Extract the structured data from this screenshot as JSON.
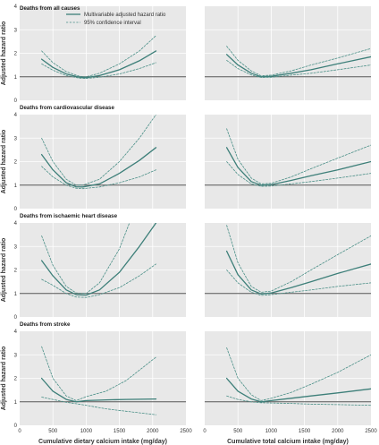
{
  "colors": {
    "panel_background": "#e8e8e8",
    "grid": "#ffffff",
    "reference_line": "#555555",
    "estimate_line": "#3d7f79",
    "ci_line": "#4a8f87"
  },
  "legend": {
    "items": [
      {
        "label": "Multivariable adjusted hazard ratio",
        "style": "solid"
      },
      {
        "label": "95% confidence interval",
        "style": "dashed"
      }
    ],
    "position": "top-left of first panel"
  },
  "axes": {
    "ylabel": "Adjusted hazard ratio",
    "xlabel_left": "Cumulative dietary calcium intake (mg/day)",
    "xlabel_right": "Cumulative total calcium intake (mg/day)",
    "x_ticks": [
      "0",
      "500",
      "1000",
      "1500",
      "2000",
      "2500"
    ],
    "y_ticks": [
      "0",
      "1",
      "2",
      "3",
      "4"
    ]
  },
  "chart_data": [
    {
      "type": "line",
      "title": "Deaths from all causes",
      "xlabel": "",
      "ylabel": "Adjusted hazard ratio",
      "xlim": [
        0,
        2500
      ],
      "ylim": [
        0,
        4
      ],
      "grid": true,
      "reference_y": 1,
      "series": [
        {
          "name": "Multivariable adjusted hazard ratio",
          "style": "solid",
          "x": [
            330,
            500,
            700,
            900,
            1000,
            1200,
            1500,
            1800,
            2050
          ],
          "y": [
            1.75,
            1.4,
            1.12,
            0.98,
            0.96,
            1.05,
            1.3,
            1.68,
            2.1
          ]
        },
        {
          "name": "95% confidence interval (upper)",
          "style": "dashed",
          "x": [
            330,
            500,
            700,
            900,
            1000,
            1200,
            1500,
            1800,
            2050
          ],
          "y": [
            2.1,
            1.6,
            1.22,
            1.02,
            1.0,
            1.15,
            1.55,
            2.1,
            2.75
          ]
        },
        {
          "name": "95% confidence interval (lower)",
          "style": "dashed",
          "x": [
            330,
            500,
            700,
            900,
            1000,
            1200,
            1500,
            1800,
            2050
          ],
          "y": [
            1.55,
            1.28,
            1.05,
            0.94,
            0.93,
            0.98,
            1.12,
            1.35,
            1.6
          ]
        }
      ]
    },
    {
      "type": "line",
      "title": "",
      "xlabel": "",
      "ylabel": "",
      "xlim": [
        0,
        2500
      ],
      "ylim": [
        0,
        4
      ],
      "grid": true,
      "reference_y": 1,
      "series": [
        {
          "name": "Multivariable adjusted hazard ratio",
          "style": "solid",
          "x": [
            330,
            500,
            700,
            850,
            1000,
            1300,
            1600,
            2000,
            2500
          ],
          "y": [
            1.95,
            1.5,
            1.15,
            1.0,
            1.02,
            1.15,
            1.3,
            1.55,
            1.85
          ]
        },
        {
          "name": "95% confidence interval (upper)",
          "style": "dashed",
          "x": [
            330,
            500,
            700,
            850,
            1000,
            1300,
            1600,
            2000,
            2500
          ],
          "y": [
            2.3,
            1.7,
            1.25,
            1.04,
            1.07,
            1.25,
            1.5,
            1.8,
            2.2
          ]
        },
        {
          "name": "95% confidence interval (lower)",
          "style": "dashed",
          "x": [
            330,
            500,
            700,
            850,
            1000,
            1300,
            1600,
            2000,
            2500
          ],
          "y": [
            1.7,
            1.35,
            1.08,
            0.97,
            0.98,
            1.07,
            1.15,
            1.3,
            1.5
          ]
        }
      ]
    },
    {
      "type": "line",
      "title": "Deaths from cardiovascular disease",
      "xlabel": "",
      "ylabel": "Adjusted hazard ratio",
      "xlim": [
        0,
        2500
      ],
      "ylim": [
        0,
        4
      ],
      "grid": true,
      "reference_y": 1,
      "series": [
        {
          "name": "Multivariable adjusted hazard ratio",
          "style": "solid",
          "x": [
            330,
            500,
            700,
            850,
            950,
            1200,
            1500,
            1800,
            2050
          ],
          "y": [
            2.3,
            1.65,
            1.1,
            0.93,
            0.92,
            1.05,
            1.5,
            2.05,
            2.6
          ]
        },
        {
          "name": "95% confidence interval (upper)",
          "style": "dashed",
          "x": [
            330,
            500,
            700,
            850,
            950,
            1200,
            1500,
            1800,
            1950,
            2050
          ],
          "y": [
            3.0,
            2.0,
            1.25,
            1.0,
            1.0,
            1.25,
            2.0,
            3.0,
            3.6,
            4.0
          ]
        },
        {
          "name": "95% confidence interval (lower)",
          "style": "dashed",
          "x": [
            330,
            500,
            700,
            850,
            950,
            1200,
            1500,
            1800,
            2050
          ],
          "y": [
            1.8,
            1.35,
            1.0,
            0.87,
            0.85,
            0.92,
            1.1,
            1.35,
            1.65
          ]
        }
      ]
    },
    {
      "type": "line",
      "title": "",
      "xlabel": "",
      "ylabel": "",
      "xlim": [
        0,
        2500
      ],
      "ylim": [
        0,
        4
      ],
      "grid": true,
      "reference_y": 1,
      "series": [
        {
          "name": "Multivariable adjusted hazard ratio",
          "style": "solid",
          "x": [
            330,
            500,
            700,
            850,
            1000,
            1300,
            1600,
            2000,
            2500
          ],
          "y": [
            2.6,
            1.75,
            1.15,
            1.0,
            1.02,
            1.2,
            1.4,
            1.65,
            2.0
          ]
        },
        {
          "name": "95% confidence interval (upper)",
          "style": "dashed",
          "x": [
            330,
            500,
            700,
            850,
            1000,
            1300,
            1600,
            2000,
            2500
          ],
          "y": [
            3.4,
            2.1,
            1.3,
            1.05,
            1.08,
            1.35,
            1.7,
            2.15,
            2.7
          ]
        },
        {
          "name": "95% confidence interval (lower)",
          "style": "dashed",
          "x": [
            330,
            500,
            700,
            850,
            1000,
            1300,
            1600,
            2000,
            2500
          ],
          "y": [
            2.0,
            1.45,
            1.05,
            0.95,
            0.96,
            1.05,
            1.15,
            1.3,
            1.5
          ]
        }
      ]
    },
    {
      "type": "line",
      "title": "Deaths from ischaemic heart disease",
      "xlabel": "",
      "ylabel": "Adjusted hazard ratio",
      "xlim": [
        0,
        2500
      ],
      "ylim": [
        0,
        4
      ],
      "grid": true,
      "reference_y": 1,
      "series": [
        {
          "name": "Multivariable adjusted hazard ratio",
          "style": "solid",
          "x": [
            330,
            500,
            700,
            850,
            1000,
            1200,
            1500,
            1800,
            2050
          ],
          "y": [
            2.4,
            1.75,
            1.15,
            0.95,
            0.93,
            1.15,
            1.9,
            3.0,
            4.0
          ]
        },
        {
          "name": "95% confidence interval (upper)",
          "style": "dashed",
          "x": [
            330,
            500,
            700,
            850,
            1000,
            1200,
            1500,
            1650
          ],
          "y": [
            3.45,
            2.2,
            1.3,
            1.02,
            1.0,
            1.45,
            2.9,
            4.0
          ]
        },
        {
          "name": "95% confidence interval (lower)",
          "style": "dashed",
          "x": [
            330,
            500,
            700,
            850,
            1000,
            1200,
            1500,
            1800,
            2050
          ],
          "y": [
            1.6,
            1.35,
            1.0,
            0.85,
            0.83,
            0.95,
            1.25,
            1.75,
            2.25
          ]
        }
      ]
    },
    {
      "type": "line",
      "title": "",
      "xlabel": "",
      "ylabel": "",
      "xlim": [
        0,
        2500
      ],
      "ylim": [
        0,
        4
      ],
      "grid": true,
      "reference_y": 1,
      "series": [
        {
          "name": "Multivariable adjusted hazard ratio",
          "style": "solid",
          "x": [
            330,
            500,
            700,
            850,
            1000,
            1300,
            1600,
            2000,
            2500
          ],
          "y": [
            2.8,
            1.8,
            1.15,
            0.98,
            1.02,
            1.25,
            1.5,
            1.85,
            2.25
          ]
        },
        {
          "name": "95% confidence interval (upper)",
          "style": "dashed",
          "x": [
            330,
            500,
            700,
            850,
            1000,
            1300,
            1600,
            2000,
            2500
          ],
          "y": [
            3.9,
            2.3,
            1.3,
            1.05,
            1.1,
            1.5,
            2.0,
            2.65,
            3.45
          ]
        },
        {
          "name": "95% confidence interval (lower)",
          "style": "dashed",
          "x": [
            330,
            500,
            700,
            850,
            1000,
            1300,
            1600,
            2000,
            2500
          ],
          "y": [
            2.0,
            1.45,
            1.05,
            0.92,
            0.95,
            1.05,
            1.15,
            1.3,
            1.45
          ]
        }
      ]
    },
    {
      "type": "line",
      "title": "Deaths from stroke",
      "xlabel": "Cumulative dietary calcium intake (mg/day)",
      "ylabel": "Adjusted hazard ratio",
      "xlim": [
        0,
        2500
      ],
      "ylim": [
        0,
        4
      ],
      "grid": true,
      "reference_y": 1,
      "series": [
        {
          "name": "Multivariable adjusted hazard ratio",
          "style": "solid",
          "x": [
            330,
            500,
            700,
            850,
            1000,
            1300,
            1600,
            2050
          ],
          "y": [
            2.0,
            1.45,
            1.1,
            1.0,
            1.05,
            1.08,
            1.1,
            1.12
          ]
        },
        {
          "name": "95% confidence interval (upper)",
          "style": "dashed",
          "x": [
            330,
            500,
            700,
            850,
            1000,
            1300,
            1600,
            2050
          ],
          "y": [
            3.35,
            2.0,
            1.25,
            1.05,
            1.22,
            1.45,
            1.9,
            2.9
          ]
        },
        {
          "name": "95% confidence interval (lower)",
          "style": "dashed",
          "x": [
            330,
            500,
            700,
            850,
            1000,
            1300,
            1600,
            2050
          ],
          "y": [
            1.2,
            1.1,
            0.98,
            0.92,
            0.85,
            0.7,
            0.6,
            0.45
          ]
        }
      ]
    },
    {
      "type": "line",
      "title": "",
      "xlabel": "Cumulative total calcium intake (mg/day)",
      "ylabel": "",
      "xlim": [
        0,
        2500
      ],
      "ylim": [
        0,
        4
      ],
      "grid": true,
      "reference_y": 1,
      "series": [
        {
          "name": "Multivariable adjusted hazard ratio",
          "style": "solid",
          "x": [
            330,
            500,
            700,
            850,
            1000,
            1300,
            1600,
            2000,
            2500
          ],
          "y": [
            2.0,
            1.45,
            1.12,
            1.0,
            1.05,
            1.15,
            1.25,
            1.38,
            1.55
          ]
        },
        {
          "name": "95% confidence interval (upper)",
          "style": "dashed",
          "x": [
            330,
            500,
            700,
            850,
            1000,
            1300,
            1600,
            2000,
            2500
          ],
          "y": [
            3.3,
            2.0,
            1.3,
            1.05,
            1.15,
            1.4,
            1.75,
            2.25,
            3.0
          ]
        },
        {
          "name": "95% confidence interval (lower)",
          "style": "dashed",
          "x": [
            330,
            500,
            700,
            850,
            1000,
            1300,
            1600,
            2000,
            2500
          ],
          "y": [
            1.25,
            1.1,
            1.0,
            0.96,
            0.95,
            0.93,
            0.9,
            0.88,
            0.85
          ]
        }
      ]
    }
  ]
}
